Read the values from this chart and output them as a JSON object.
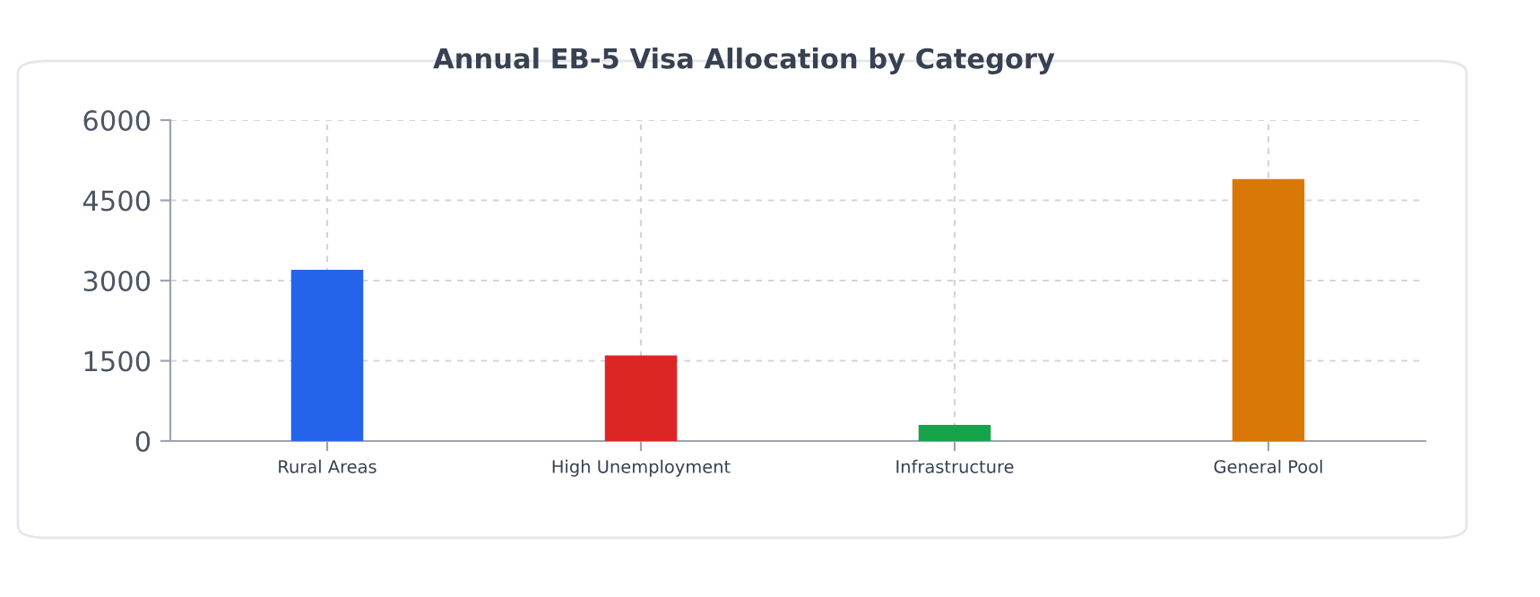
{
  "chart_data": {
    "type": "bar",
    "title": "Annual EB-5 Visa Allocation by Category",
    "categories": [
      "Rural Areas",
      "High Unemployment",
      "Infrastructure",
      "General Pool"
    ],
    "values": [
      3200,
      1600,
      300,
      4900
    ],
    "colors": [
      "#2563eb",
      "#dc2626",
      "#16a34a",
      "#d97706"
    ],
    "ylim": [
      0,
      6000
    ],
    "yticks": [
      0,
      1500,
      3000,
      4500,
      6000
    ],
    "grid": true
  }
}
